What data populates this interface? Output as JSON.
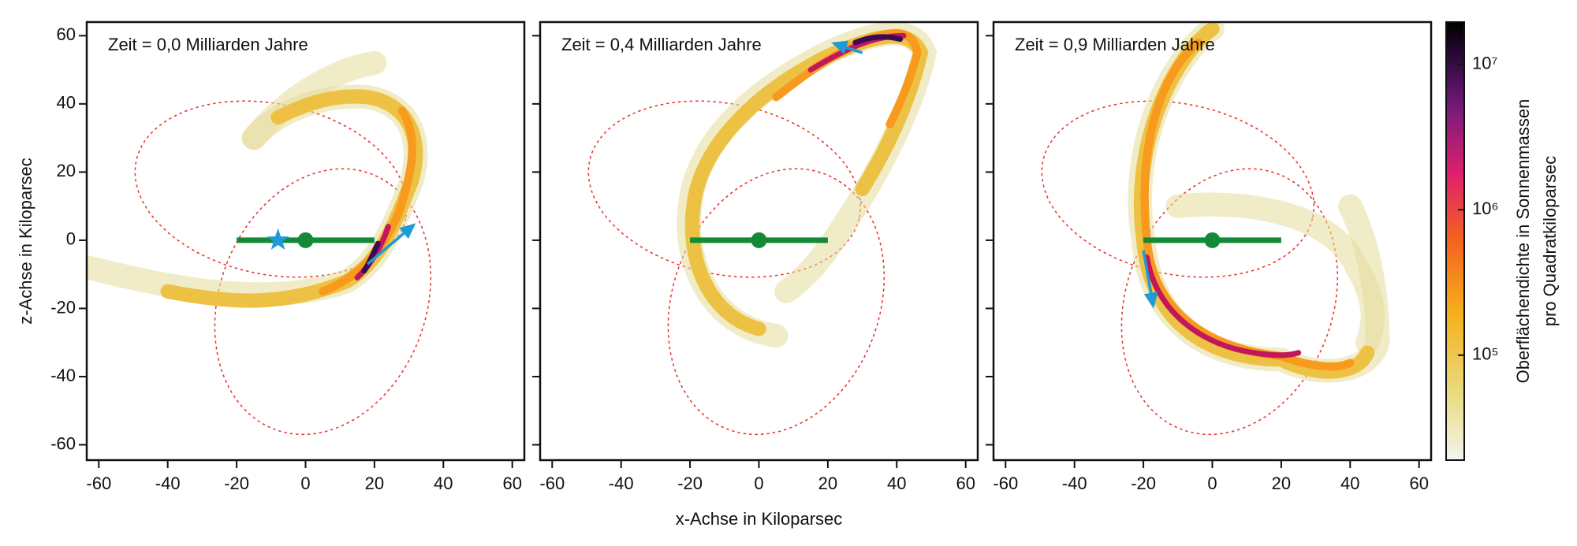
{
  "chart_data": [
    {
      "type": "scatter",
      "title": "Zeit = 0,0 Milliarden Jahre",
      "xlim": [
        -63.5,
        63.5
      ],
      "ylim": [
        -64.5,
        64
      ],
      "xticks": [
        -60,
        -40,
        -20,
        0,
        20,
        40,
        60
      ],
      "yticks": [
        -60,
        -40,
        -20,
        0,
        20,
        40,
        60
      ],
      "bar": {
        "x": [
          -20,
          20
        ],
        "y": [
          0,
          0
        ],
        "color": "#138a36"
      },
      "center": {
        "x": 0,
        "y": 0,
        "color": "#138a36"
      },
      "arrow": {
        "x": [
          18,
          32
        ],
        "y": [
          -7,
          5
        ],
        "color": "#1e9ad6"
      },
      "star": {
        "x": -8,
        "y": 0,
        "color": "#1e9ad6"
      }
    },
    {
      "type": "scatter",
      "title": "Zeit = 0,4 Milliarden Jahre",
      "xlim": [
        -63.5,
        63.5
      ],
      "ylim": [
        -64.5,
        64
      ],
      "xticks": [
        -60,
        -40,
        -20,
        0,
        20,
        40,
        60
      ],
      "yticks": [
        -60,
        -40,
        -20,
        0,
        20,
        40,
        60
      ],
      "bar": {
        "x": [
          -20,
          20
        ],
        "y": [
          0,
          0
        ],
        "color": "#138a36"
      },
      "center": {
        "x": 0,
        "y": 0,
        "color": "#138a36"
      },
      "arrow": {
        "x": [
          30,
          21
        ],
        "y": [
          55,
          58
        ],
        "color": "#1e9ad6"
      }
    },
    {
      "type": "scatter",
      "title": "Zeit = 0,9 Milliarden Jahre",
      "xlim": [
        -63.5,
        63.5
      ],
      "ylim": [
        -64.5,
        64
      ],
      "xticks": [
        -60,
        -40,
        -20,
        0,
        20,
        40,
        60
      ],
      "yticks": [
        -60,
        -40,
        -20,
        0,
        20,
        40,
        60
      ],
      "bar": {
        "x": [
          -20,
          20
        ],
        "y": [
          0,
          0
        ],
        "color": "#138a36"
      },
      "center": {
        "x": 0,
        "y": 0,
        "color": "#138a36"
      },
      "arrow": {
        "x": [
          -20,
          -17
        ],
        "y": [
          -3,
          -20
        ],
        "color": "#1e9ad6"
      }
    }
  ],
  "xlabel": "x-Achse in Kiloparsec",
  "ylabel": "z-Achse in Kiloparsec",
  "colorbar": {
    "label": [
      "Oberflächendichte in Sonnenmassen",
      "pro Quadratkiloparsec"
    ],
    "log": true,
    "lim": [
      19000,
      19500000
    ],
    "ticks": [
      {
        "value": 100000,
        "label": "10⁵"
      },
      {
        "value": 1000000,
        "label": "10⁶"
      },
      {
        "value": 10000000,
        "label": "10⁷"
      }
    ]
  }
}
